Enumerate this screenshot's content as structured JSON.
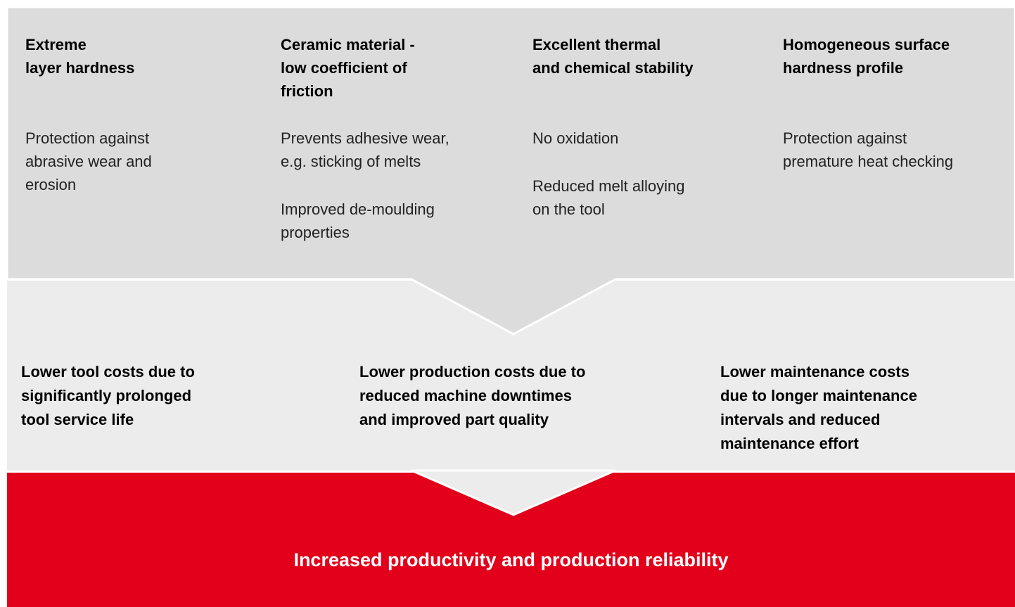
{
  "features": [
    {
      "title_lines": [
        "Extreme",
        "layer hardness"
      ],
      "paragraphs": [
        [
          "Protection against",
          "abrasive wear and",
          "erosion"
        ]
      ]
    },
    {
      "title_lines": [
        "Ceramic material -",
        "low coefficient of",
        "friction"
      ],
      "paragraphs": [
        [
          "Prevents adhesive wear,",
          "e.g. sticking of melts"
        ],
        [
          "Improved de-moulding",
          "properties"
        ]
      ]
    },
    {
      "title_lines": [
        "Excellent thermal",
        "and chemical stability"
      ],
      "paragraphs": [
        [
          "No oxidation"
        ],
        [
          "Reduced melt alloying",
          "on the tool"
        ]
      ]
    },
    {
      "title_lines": [
        "Homogeneous surface",
        "hardness profile"
      ],
      "paragraphs": [
        [
          "Protection against",
          "premature heat checking"
        ]
      ]
    }
  ],
  "benefits": [
    {
      "lines": [
        "Lower tool costs due to",
        "significantly prolonged",
        "tool service life"
      ]
    },
    {
      "lines": [
        "Lower production costs due to",
        "reduced machine downtimes",
        "and improved part quality"
      ]
    },
    {
      "lines": [
        "Lower maintenance costs",
        "due to longer maintenance",
        "intervals and reduced",
        "maintenance effort"
      ]
    }
  ],
  "result": "Increased productivity and production reliability"
}
